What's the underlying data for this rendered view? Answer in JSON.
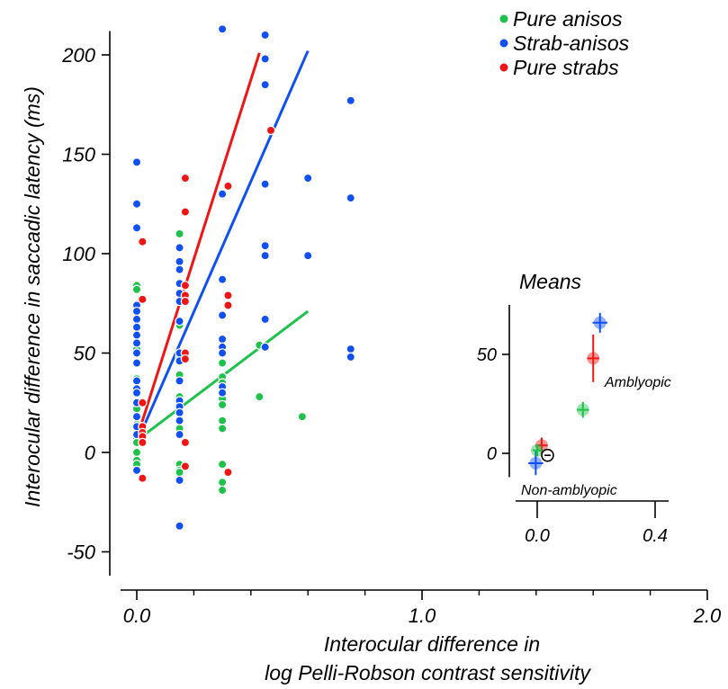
{
  "chart_data": [
    {
      "type": "scatter",
      "xlabel": [
        "Interocular difference in",
        "log Pelli-Robson contrast sensitivity"
      ],
      "ylabel": "Interocular difference in saccadic latency (ms)",
      "xlim": [
        -0.05,
        2.0
      ],
      "ylim": [
        -60,
        215
      ],
      "xticks": [
        {
          "v": 0.0,
          "label": "0.0"
        },
        {
          "v": 1.0,
          "label": "1.0"
        },
        {
          "v": 2.0,
          "label": "2.0"
        }
      ],
      "xminor": [
        0.2,
        0.4,
        0.6,
        0.8,
        1.2,
        1.4,
        1.6,
        1.8
      ],
      "yticks": [
        {
          "v": -50,
          "label": "-50"
        },
        {
          "v": 0,
          "label": "0"
        },
        {
          "v": 50,
          "label": "50"
        },
        {
          "v": 100,
          "label": "100"
        },
        {
          "v": 150,
          "label": "150"
        },
        {
          "v": 200,
          "label": "200"
        }
      ],
      "grid": false,
      "legend_position": "top-right",
      "series": [
        {
          "name": "Pure anisos",
          "color": "#1ec24a",
          "points": [
            [
              0,
              84
            ],
            [
              0,
              82
            ],
            [
              0,
              52
            ],
            [
              0,
              37
            ],
            [
              0,
              22
            ],
            [
              0,
              18
            ],
            [
              0,
              14
            ],
            [
              0,
              10
            ],
            [
              0,
              7
            ],
            [
              0,
              5
            ],
            [
              0,
              0
            ],
            [
              0,
              -4
            ],
            [
              0,
              -6
            ],
            [
              0,
              -9
            ],
            [
              0.15,
              110
            ],
            [
              0.15,
              64
            ],
            [
              0.15,
              48
            ],
            [
              0.15,
              39
            ],
            [
              0.15,
              28
            ],
            [
              0.15,
              19
            ],
            [
              0.15,
              12
            ],
            [
              0.15,
              -6
            ],
            [
              0.15,
              -9
            ],
            [
              0.15,
              -10
            ],
            [
              0.3,
              53
            ],
            [
              0.3,
              45
            ],
            [
              0.3,
              38
            ],
            [
              0.3,
              35
            ],
            [
              0.3,
              27
            ],
            [
              0.3,
              24
            ],
            [
              0.3,
              16
            ],
            [
              0.3,
              12
            ],
            [
              0.3,
              -6
            ],
            [
              0.3,
              -15
            ],
            [
              0.3,
              -19
            ],
            [
              0.43,
              54
            ],
            [
              0.43,
              28
            ],
            [
              0.58,
              18
            ]
          ],
          "fit": [
            [
              0,
              6
            ],
            [
              0.6,
              71
            ]
          ]
        },
        {
          "name": "Strab-anisos",
          "color": "#1050f0",
          "points": [
            [
              0,
              146
            ],
            [
              0,
              125
            ],
            [
              0,
              113
            ],
            [
              0,
              74
            ],
            [
              0,
              71
            ],
            [
              0,
              67
            ],
            [
              0,
              63
            ],
            [
              0,
              59
            ],
            [
              0,
              55
            ],
            [
              0,
              50
            ],
            [
              0,
              45
            ],
            [
              0,
              36
            ],
            [
              0,
              32
            ],
            [
              0,
              30
            ],
            [
              0,
              25
            ],
            [
              0,
              18
            ],
            [
              0,
              13
            ],
            [
              0,
              9
            ],
            [
              0,
              -9
            ],
            [
              0.15,
              103
            ],
            [
              0.15,
              96
            ],
            [
              0.15,
              92
            ],
            [
              0.15,
              85
            ],
            [
              0.15,
              80
            ],
            [
              0.15,
              76
            ],
            [
              0.15,
              66
            ],
            [
              0.15,
              50
            ],
            [
              0.15,
              46
            ],
            [
              0.15,
              36
            ],
            [
              0.15,
              26
            ],
            [
              0.15,
              23
            ],
            [
              0.15,
              20
            ],
            [
              0.15,
              16
            ],
            [
              0.15,
              9
            ],
            [
              0.15,
              -14
            ],
            [
              0.15,
              -37
            ],
            [
              0.3,
              213
            ],
            [
              0.3,
              130
            ],
            [
              0.3,
              87
            ],
            [
              0.3,
              69
            ],
            [
              0.3,
              57
            ],
            [
              0.3,
              53
            ],
            [
              0.3,
              50
            ],
            [
              0.3,
              33
            ],
            [
              0.3,
              30
            ],
            [
              0.45,
              210
            ],
            [
              0.45,
              198
            ],
            [
              0.45,
              185
            ],
            [
              0.45,
              135
            ],
            [
              0.45,
              104
            ],
            [
              0.45,
              99
            ],
            [
              0.45,
              67
            ],
            [
              0.45,
              53
            ],
            [
              0.6,
              138
            ],
            [
              0.6,
              99
            ],
            [
              0.75,
              177
            ],
            [
              0.75,
              128
            ],
            [
              0.75,
              52
            ],
            [
              0.75,
              48
            ]
          ],
          "fit": [
            [
              0,
              5
            ],
            [
              0.6,
              202
            ]
          ]
        },
        {
          "name": "Pure strabs",
          "color": "#ee1515",
          "points": [
            [
              0.02,
              106
            ],
            [
              0.02,
              77
            ],
            [
              0.02,
              25
            ],
            [
              0.02,
              13
            ],
            [
              0.02,
              10
            ],
            [
              0.02,
              8
            ],
            [
              0.02,
              5
            ],
            [
              0.02,
              -13
            ],
            [
              0.17,
              138
            ],
            [
              0.17,
              121
            ],
            [
              0.17,
              84
            ],
            [
              0.17,
              79
            ],
            [
              0.17,
              76
            ],
            [
              0.17,
              50
            ],
            [
              0.17,
              47
            ],
            [
              0.17,
              5
            ],
            [
              0.17,
              -7
            ],
            [
              0.32,
              134
            ],
            [
              0.32,
              79
            ],
            [
              0.32,
              74
            ],
            [
              0.32,
              -10
            ],
            [
              0.47,
              162
            ]
          ],
          "fit": [
            [
              0,
              7
            ],
            [
              0.43,
              201
            ]
          ]
        }
      ]
    },
    {
      "type": "scatter",
      "title": "Means",
      "xlim": [
        -0.05,
        0.45
      ],
      "ylim": [
        -12,
        75
      ],
      "xticks": [
        {
          "v": 0.0,
          "label": "0.0"
        },
        {
          "v": 0.4,
          "label": "0.4"
        }
      ],
      "yticks": [
        {
          "v": 0,
          "label": "0"
        },
        {
          "v": 50,
          "label": "50"
        }
      ],
      "annotations": [
        {
          "text": "Amblyopic",
          "x": 0.23,
          "y": 36
        },
        {
          "text": "Non-amblyopic",
          "x": -0.06,
          "y": -19
        }
      ],
      "series": [
        {
          "color": "#1050f0",
          "points": [
            {
              "x": 0.213,
              "y": 66,
              "xerr": 0.025,
              "yerr": 5
            },
            {
              "x": -0.005,
              "y": -5,
              "xerr": 0.025,
              "yerr": 6
            }
          ]
        },
        {
          "color": "#ee1515",
          "points": [
            {
              "x": 0.19,
              "y": 48,
              "xerr": 0.02,
              "yerr": 12
            },
            {
              "x": 0.015,
              "y": 4,
              "xerr": 0.02,
              "yerr": 4
            }
          ]
        },
        {
          "color": "#1ec24a",
          "points": [
            {
              "x": 0.155,
              "y": 22,
              "xerr": 0.02,
              "yerr": 4
            },
            {
              "x": 0.0,
              "y": 1.5,
              "xerr": 0.015,
              "yerr": 3
            }
          ]
        },
        {
          "color": "#000000",
          "hollow": true,
          "points": [
            {
              "x": 0.035,
              "y": -1
            }
          ]
        }
      ]
    }
  ]
}
